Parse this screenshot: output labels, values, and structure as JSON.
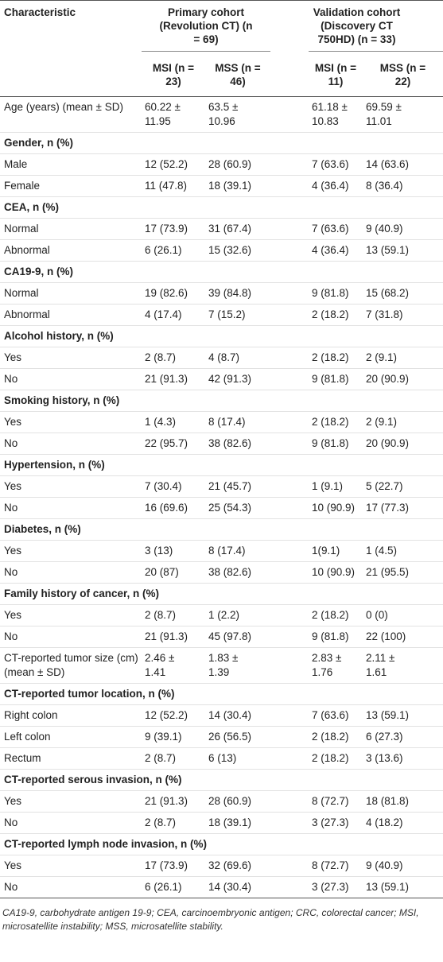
{
  "table": {
    "header": {
      "characteristic": "Characteristic",
      "primary": "Primary cohort (Revolution CT) (n = 69)",
      "validation": "Validation cohort (Discovery CT 750HD) (n = 33)",
      "subheaders": [
        "MSI (n = 23)",
        "MSS (n = 46)",
        "MSI (n = 11)",
        "MSS (n = 22)"
      ]
    },
    "rows": [
      [
        "Age (years) (mean ± SD)",
        "60.22 ± 11.95",
        "63.5 ± 10.96",
        "61.18 ± 10.83",
        "69.59 ± 11.01"
      ],
      [
        "Gender, n (%)"
      ],
      [
        "Male",
        "12 (52.2)",
        "28 (60.9)",
        "7 (63.6)",
        "14 (63.6)"
      ],
      [
        "Female",
        "11 (47.8)",
        "18 (39.1)",
        "4 (36.4)",
        "8 (36.4)"
      ],
      [
        "CEA, n (%)"
      ],
      [
        "Normal",
        "17 (73.9)",
        "31 (67.4)",
        "7 (63.6)",
        "9 (40.9)"
      ],
      [
        "Abnormal",
        "6 (26.1)",
        "15 (32.6)",
        "4 (36.4)",
        "13 (59.1)"
      ],
      [
        "CA19-9, n (%)"
      ],
      [
        "Normal",
        "19 (82.6)",
        "39 (84.8)",
        "9 (81.8)",
        "15 (68.2)"
      ],
      [
        "Abnormal",
        "4 (17.4)",
        "7 (15.2)",
        "2 (18.2)",
        "7 (31.8)"
      ],
      [
        "Alcohol history, n (%)"
      ],
      [
        "Yes",
        "2 (8.7)",
        "4 (8.7)",
        "2 (18.2)",
        "2 (9.1)"
      ],
      [
        "No",
        "21 (91.3)",
        "42 (91.3)",
        "9 (81.8)",
        "20 (90.9)"
      ],
      [
        "Smoking history, n (%)"
      ],
      [
        "Yes",
        "1 (4.3)",
        "8 (17.4)",
        "2 (18.2)",
        "2 (9.1)"
      ],
      [
        "No",
        "22 (95.7)",
        "38 (82.6)",
        "9 (81.8)",
        "20 (90.9)"
      ],
      [
        "Hypertension, n (%)"
      ],
      [
        "Yes",
        "7 (30.4)",
        "21 (45.7)",
        "1 (9.1)",
        "5 (22.7)"
      ],
      [
        "No",
        "16 (69.6)",
        "25 (54.3)",
        "10 (90.9)",
        "17 (77.3)"
      ],
      [
        "Diabetes, n (%)"
      ],
      [
        "Yes",
        "3 (13)",
        "8 (17.4)",
        "1(9.1)",
        "1 (4.5)"
      ],
      [
        "No",
        "20 (87)",
        "38 (82.6)",
        "10 (90.9)",
        "21 (95.5)"
      ],
      [
        "Family history of cancer, n (%)"
      ],
      [
        "Yes",
        "2 (8.7)",
        "1 (2.2)",
        "2 (18.2)",
        "0 (0)"
      ],
      [
        "No",
        "21 (91.3)",
        "45 (97.8)",
        "9 (81.8)",
        "22 (100)"
      ],
      [
        "CT-reported tumor size (cm) (mean ± SD)",
        "2.46 ± 1.41",
        "1.83 ± 1.39",
        "2.83 ± 1.76",
        "2.11 ± 1.61"
      ],
      [
        "CT-reported tumor location, n (%)"
      ],
      [
        "Right colon",
        "12 (52.2)",
        "14 (30.4)",
        "7 (63.6)",
        "13 (59.1)"
      ],
      [
        "Left colon",
        "9 (39.1)",
        "26 (56.5)",
        "2 (18.2)",
        "6 (27.3)"
      ],
      [
        "Rectum",
        "2 (8.7)",
        "6 (13)",
        "2 (18.2)",
        "3 (13.6)"
      ],
      [
        "CT-reported serous invasion, n (%)"
      ],
      [
        "Yes",
        "21 (91.3)",
        "28 (60.9)",
        "8 (72.7)",
        "18 (81.8)"
      ],
      [
        "No",
        "2 (8.7)",
        "18 (39.1)",
        "3 (27.3)",
        "4 (18.2)"
      ],
      [
        "CT-reported lymph node invasion, n (%)"
      ],
      [
        "Yes",
        "17 (73.9)",
        "32 (69.6)",
        "8 (72.7)",
        "9 (40.9)"
      ],
      [
        "No",
        "6 (26.1)",
        "14 (30.4)",
        "3 (27.3)",
        "13 (59.1)"
      ]
    ],
    "footnote": "CA19-9, carbohydrate antigen 19-9; CEA, carcinoembryonic antigen; CRC, colorectal cancer; MSI, microsatellite instability; MSS, microsatellite stability."
  }
}
